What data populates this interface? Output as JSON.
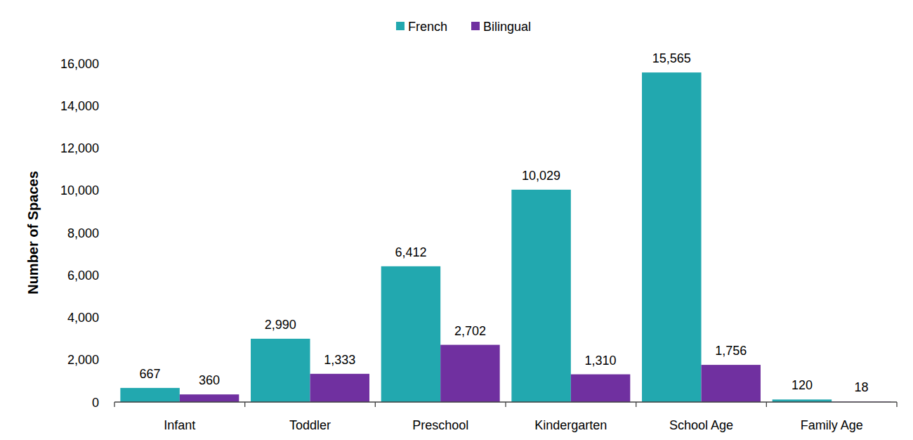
{
  "chart_data": {
    "type": "bar",
    "categories": [
      "Infant",
      "Toddler",
      "Preschool",
      "Kindergarten",
      "School Age",
      "Family Age"
    ],
    "series": [
      {
        "name": "French",
        "color": "#22A8AF",
        "values": [
          667,
          2990,
          6412,
          10029,
          15565,
          120
        ],
        "value_labels": [
          "667",
          "2,990",
          "6,412",
          "10,029",
          "15,565",
          "120"
        ]
      },
      {
        "name": "Bilingual",
        "color": "#7030A0",
        "values": [
          360,
          1333,
          2702,
          1310,
          1756,
          18
        ],
        "value_labels": [
          "360",
          "1,333",
          "2,702",
          "1,310",
          "1,756",
          "18"
        ]
      }
    ],
    "ylabel": "Number of Spaces",
    "ylim": [
      0,
      16000
    ],
    "yticks": [
      0,
      {
        "value": 2000,
        "label": "2,000"
      },
      {
        "value": 4000,
        "label": "4,000"
      },
      {
        "value": 6000,
        "label": "6,000"
      },
      {
        "value": 8000,
        "label": "8,000"
      },
      {
        "value": 10000,
        "label": "10,000"
      },
      {
        "value": 12000,
        "label": "12,000"
      },
      {
        "value": 14000,
        "label": "14,000"
      },
      {
        "value": 16000,
        "label": "16,000"
      }
    ],
    "grid": false,
    "legend": "top",
    "data_labels": true
  }
}
